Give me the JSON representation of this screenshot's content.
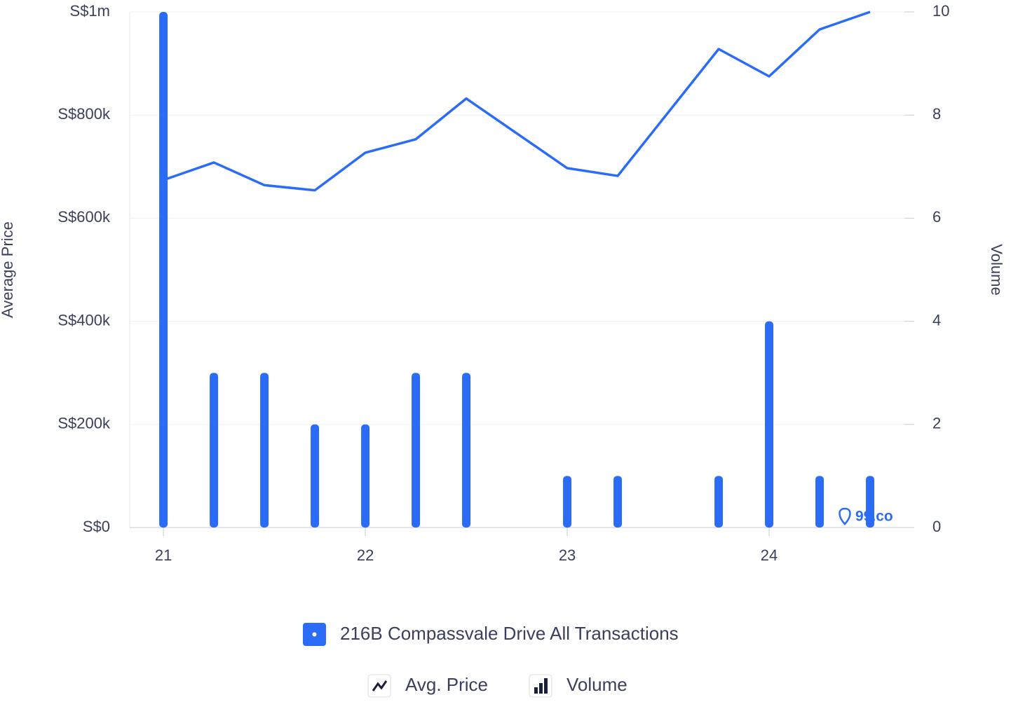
{
  "chart_data": {
    "type": "combo",
    "y_label": "Average Price",
    "y2_label": "Volume",
    "legend_title": "216B Compassvale Drive All Transactions",
    "watermark": "99.co",
    "x": [
      21,
      21.25,
      21.5,
      21.75,
      22,
      22.25,
      22.5,
      23,
      23.25,
      23.75,
      24,
      24.25,
      24.5
    ],
    "xlim": [
      20.833,
      24.67
    ],
    "xticks": [
      21,
      22,
      23,
      24
    ],
    "ylim": [
      0,
      1000000
    ],
    "yticks": [
      {
        "value": 0,
        "label": "S$0"
      },
      {
        "value": 200000,
        "label": "S$200k"
      },
      {
        "value": 400000,
        "label": "S$400k"
      },
      {
        "value": 600000,
        "label": "S$600k"
      },
      {
        "value": 800000,
        "label": "S$800k"
      },
      {
        "value": 1000000,
        "label": "S$1m"
      }
    ],
    "y2lim": [
      0,
      10
    ],
    "y2ticks": [
      0,
      2,
      4,
      6,
      8,
      10
    ],
    "grid": true,
    "series": [
      {
        "name": "Avg. Price",
        "type": "line",
        "color": "#2b6cf6",
        "values": [
          674000,
          708000,
          664000,
          654000,
          727000,
          753000,
          832000,
          697000,
          682000,
          928000,
          875000,
          966000,
          1000000
        ]
      },
      {
        "name": "Volume",
        "type": "bar",
        "axis": "y2",
        "color": "#2b6cf6",
        "values": [
          10,
          3,
          3,
          2,
          2,
          3,
          3,
          1,
          1,
          1,
          4,
          1,
          1
        ]
      }
    ]
  }
}
